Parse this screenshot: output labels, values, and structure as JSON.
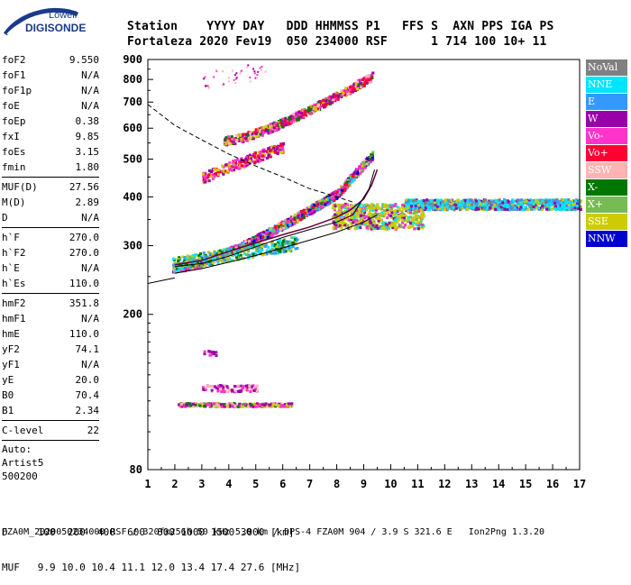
{
  "logo": {
    "line1": "Lowell",
    "line2": "DIGISONDE"
  },
  "header": {
    "line1": "Station    YYYY DAY   DDD HHMMSS P1   FFS S  AXN PPS IGA PS",
    "line2": "Fortaleza 2020 Fev19  050 234000 RSF      1 714 100 10+ 11"
  },
  "params": {
    "group1": [
      {
        "name": "foF2",
        "value": "9.550"
      },
      {
        "name": "foF1",
        "value": "N/A"
      },
      {
        "name": "foF1p",
        "value": "N/A"
      },
      {
        "name": "foE",
        "value": "N/A"
      },
      {
        "name": "foEp",
        "value": "0.38"
      },
      {
        "name": "fxI",
        "value": "9.85"
      },
      {
        "name": "foEs",
        "value": "3.15"
      },
      {
        "name": "fmin",
        "value": "1.80"
      }
    ],
    "group2": [
      {
        "name": "MUF(D)",
        "value": "27.56"
      },
      {
        "name": "M(D)",
        "value": "2.89"
      },
      {
        "name": "D",
        "value": "N/A"
      }
    ],
    "group3": [
      {
        "name": "h`F",
        "value": "270.0"
      },
      {
        "name": "h`F2",
        "value": "270.0"
      },
      {
        "name": "h`E",
        "value": "N/A"
      },
      {
        "name": "h`Es",
        "value": "110.0"
      }
    ],
    "group4": [
      {
        "name": "hmF2",
        "value": "351.8"
      },
      {
        "name": "hmF1",
        "value": "N/A"
      },
      {
        "name": "hmE",
        "value": "110.0"
      },
      {
        "name": "yF2",
        "value": "74.1"
      },
      {
        "name": "yF1",
        "value": "N/A"
      },
      {
        "name": "yE",
        "value": "20.0"
      },
      {
        "name": "B0",
        "value": "70.4"
      },
      {
        "name": "B1",
        "value": "2.34"
      }
    ],
    "group5": [
      {
        "name": "C-level",
        "value": "22"
      }
    ],
    "auto": [
      "Auto:",
      "Artist5",
      "500200"
    ]
  },
  "legend": [
    {
      "label": "NoVal",
      "bg": "#808080",
      "fg": "#ffffff"
    },
    {
      "label": "NNE",
      "bg": "#00e5ff",
      "fg": "#ffffff"
    },
    {
      "label": "E",
      "bg": "#3399ff",
      "fg": "#ffffff"
    },
    {
      "label": "W",
      "bg": "#9900aa",
      "fg": "#ffffff"
    },
    {
      "label": "Vo-",
      "bg": "#ff33cc",
      "fg": "#ffffff"
    },
    {
      "label": "Vo+",
      "bg": "#ff0033",
      "fg": "#ffffff"
    },
    {
      "label": "SSW",
      "bg": "#ffb3b3",
      "fg": "#ffffff"
    },
    {
      "label": "X-",
      "bg": "#007700",
      "fg": "#ffffff"
    },
    {
      "label": "X+",
      "bg": "#77bb55",
      "fg": "#ffffff"
    },
    {
      "label": "SSE",
      "bg": "#cccc00",
      "fg": "#ffffff"
    },
    {
      "label": "NNW",
      "bg": "#0000cc",
      "fg": "#ffffff"
    }
  ],
  "footer": {
    "line1": "D     100  200  400  600  800 1000 1500 3000 [km]",
    "line2": "MUF   9.9 10.0 10.4 11.1 12.0 13.4 17.4 27.6 [MHz]",
    "line3": "FZA0M_2020050234000.RSF / 320fx256h 50 kHz 5.0 km / DPS-4 FZA0M 904 / 3.9 S 321.6 E   Ion2Png 1.3.20"
  },
  "chart_data": {
    "type": "scatter",
    "xlim": [
      1,
      17
    ],
    "ylim": [
      80,
      900
    ],
    "x_ticks": [
      "1",
      "2",
      "3",
      "4",
      "5",
      "6",
      "7",
      "8",
      "9",
      "10",
      "11",
      "12",
      "13",
      "14",
      "15",
      "16",
      "17"
    ],
    "y_ticks": [
      "80",
      "200",
      "300",
      "400",
      "500",
      "600",
      "700",
      "800",
      "900"
    ],
    "y_scale": "log",
    "traces": [
      {
        "name": "O-trace",
        "color": "#6a0040",
        "points": [
          [
            2.0,
            268
          ],
          [
            3.0,
            275
          ],
          [
            4.0,
            290
          ],
          [
            5.0,
            305
          ],
          [
            6.0,
            320
          ],
          [
            7.0,
            335
          ],
          [
            8.0,
            355
          ],
          [
            8.5,
            370
          ],
          [
            9.0,
            395
          ],
          [
            9.3,
            430
          ],
          [
            9.5,
            470
          ]
        ]
      },
      {
        "name": "X-trace",
        "color": "#000000",
        "points": [
          [
            2.0,
            265
          ],
          [
            3.0,
            270
          ],
          [
            4.0,
            282
          ],
          [
            5.0,
            298
          ],
          [
            6.0,
            315
          ],
          [
            7.0,
            330
          ],
          [
            8.0,
            345
          ],
          [
            8.6,
            360
          ],
          [
            9.2,
            420
          ],
          [
            9.4,
            470
          ]
        ]
      },
      {
        "name": "true-height",
        "color": "#000000",
        "points": [
          [
            2.0,
            255
          ],
          [
            3.0,
            262
          ],
          [
            4.0,
            272
          ],
          [
            5.0,
            283
          ],
          [
            6.0,
            296
          ],
          [
            7.0,
            310
          ],
          [
            8.0,
            325
          ],
          [
            9.0,
            345
          ],
          [
            9.5,
            360
          ]
        ]
      },
      {
        "name": "MUF-dashed",
        "color": "#000000",
        "points": [
          [
            1.0,
            690
          ],
          [
            2.0,
            610
          ],
          [
            3.0,
            560
          ],
          [
            4.0,
            515
          ],
          [
            5.0,
            480
          ],
          [
            6.0,
            450
          ],
          [
            7.0,
            420
          ],
          [
            8.0,
            400
          ],
          [
            8.6,
            388
          ]
        ]
      },
      {
        "name": "MUF-lower",
        "color": "#000000",
        "points": [
          [
            1.0,
            240
          ],
          [
            2.0,
            248
          ]
        ]
      }
    ]
  }
}
